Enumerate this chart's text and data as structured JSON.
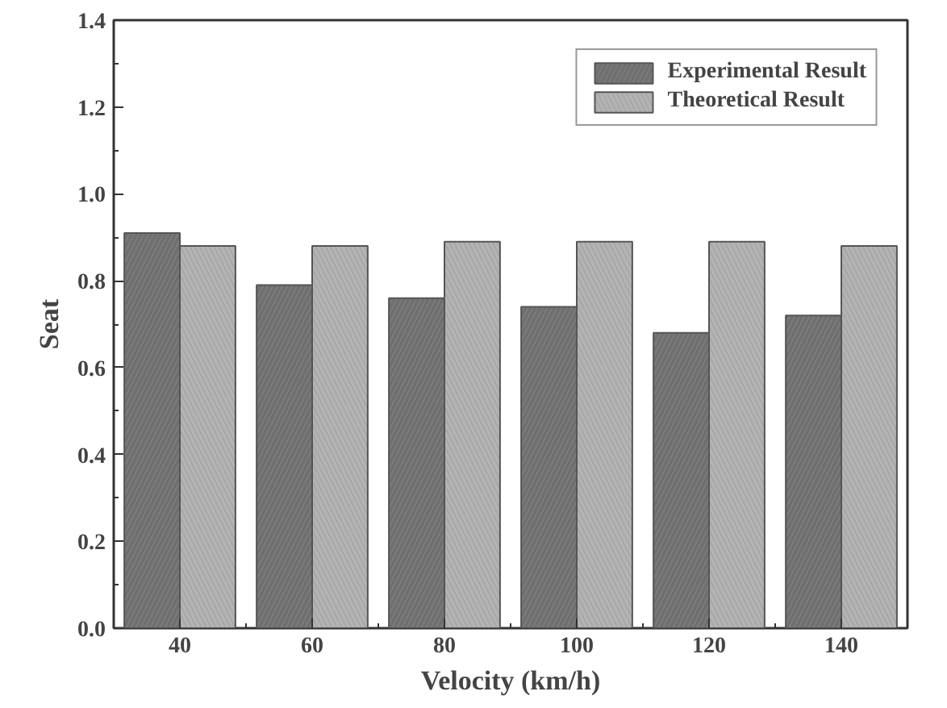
{
  "chart_data": {
    "type": "bar",
    "xlabel": "Velocity (km/h)",
    "ylabel": "Seat",
    "categories": [
      "40",
      "60",
      "80",
      "100",
      "120",
      "140"
    ],
    "series": [
      {
        "name": "Experimental Result",
        "color": "#6e6e6e",
        "values": [
          0.91,
          0.79,
          0.76,
          0.74,
          0.68,
          0.72
        ]
      },
      {
        "name": "Theoretical Result",
        "color": "#b4b4b4",
        "values": [
          0.88,
          0.88,
          0.89,
          0.89,
          0.89,
          0.88
        ]
      }
    ],
    "ylim": [
      0,
      1.4
    ],
    "yticks": [
      {
        "value": 0,
        "label": "0.0"
      },
      0.2,
      0.4,
      0.6,
      0.8,
      {
        "value": 1,
        "label": "1.0"
      },
      1.2,
      1.4
    ],
    "grid": false,
    "legend": "top right"
  }
}
